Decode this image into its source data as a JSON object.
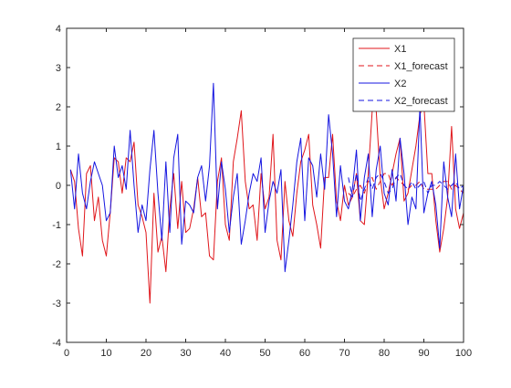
{
  "colors": {
    "x1": "#e0161b",
    "x2": "#1515e0",
    "axis": "#262626",
    "background": "#ffffff"
  },
  "chart_data": {
    "type": "line",
    "title": "",
    "xlabel": "",
    "ylabel": "",
    "xlim": [
      0,
      100
    ],
    "ylim": [
      -4,
      4
    ],
    "xticks": [
      0,
      10,
      20,
      30,
      40,
      50,
      60,
      70,
      80,
      90,
      100
    ],
    "yticks": [
      -4,
      -3,
      -2,
      -1,
      0,
      1,
      2,
      3,
      4
    ],
    "grid": false,
    "legend_position": "top-right",
    "legend": [
      {
        "label": "X1",
        "series": "X1",
        "style": "solid",
        "color": "#e0161b"
      },
      {
        "label": "X1_forecast",
        "series": "X1_forecast",
        "style": "dashed",
        "color": "#e0161b"
      },
      {
        "label": "X2",
        "series": "X2",
        "style": "solid",
        "color": "#1515e0"
      },
      {
        "label": "X2_forecast",
        "series": "X2_forecast",
        "style": "dashed",
        "color": "#1515e0"
      }
    ],
    "series": [
      {
        "name": "X1",
        "color": "#e0161b",
        "style": "solid",
        "x": [
          1,
          2,
          3,
          4,
          5,
          6,
          7,
          8,
          9,
          10,
          11,
          12,
          13,
          14,
          15,
          16,
          17,
          18,
          19,
          20,
          21,
          22,
          23,
          24,
          25,
          26,
          27,
          28,
          29,
          30,
          31,
          32,
          33,
          34,
          35,
          36,
          37,
          38,
          39,
          40,
          41,
          42,
          43,
          44,
          45,
          46,
          47,
          48,
          49,
          50,
          51,
          52,
          53,
          54,
          55,
          56,
          57,
          58,
          59,
          60,
          61,
          62,
          63,
          64,
          65,
          66,
          67,
          68,
          69,
          70,
          71,
          72,
          73,
          74,
          75,
          76,
          77,
          78,
          79,
          80,
          81,
          82,
          83,
          84,
          85,
          86,
          87,
          88,
          89,
          90,
          91,
          92,
          93,
          94,
          95,
          96,
          97,
          98,
          99,
          100
        ],
        "y": [
          0.4,
          0.1,
          -1.1,
          -1.8,
          0.3,
          0.5,
          -0.9,
          -0.3,
          -1.4,
          -1.8,
          -0.7,
          0.7,
          0.6,
          -0.2,
          0.7,
          0.6,
          1.1,
          -0.5,
          -0.8,
          -1.2,
          -3.0,
          -0.2,
          -1.7,
          -1.3,
          -2.2,
          -0.6,
          0.3,
          -1.1,
          0.1,
          -1.2,
          -1.1,
          -0.6,
          0.2,
          -0.8,
          -0.7,
          -1.8,
          -1.9,
          0.1,
          0.7,
          -1.0,
          -1.4,
          0.6,
          1.2,
          1.9,
          0.1,
          -0.6,
          -0.5,
          -1.4,
          0.3,
          -0.6,
          -0.3,
          1.3,
          -1.4,
          -1.9,
          0.1,
          -0.9,
          -1.3,
          -0.2,
          0.6,
          0.9,
          1.3,
          -0.5,
          -1.0,
          -1.6,
          0.2,
          0.2,
          1.3,
          -0.4,
          -0.9,
          0.0,
          -0.5,
          -0.3,
          0.3,
          -0.9,
          -1.0,
          0.3,
          1.9,
          1.9,
          0.2,
          -0.6,
          -0.2,
          0.3,
          0.8,
          1.2,
          -0.4,
          -0.2,
          0.4,
          1.0,
          1.8,
          2.1,
          0.3,
          0.3,
          -0.9,
          -1.7,
          -1.1,
          -0.3,
          1.5,
          -0.6,
          -1.1,
          -0.7
        ]
      },
      {
        "name": "X1_forecast",
        "color": "#e0161b",
        "style": "dashed",
        "x": [
          71,
          72,
          73,
          74,
          75,
          76,
          77,
          78,
          79,
          80,
          81,
          82,
          83,
          84,
          85,
          86,
          87,
          88,
          89,
          90,
          91,
          92,
          93,
          94,
          95,
          96,
          97,
          98,
          99,
          100
        ],
        "y": [
          -0.2,
          -0.3,
          -0.1,
          0.0,
          -0.2,
          0.1,
          0.2,
          -0.1,
          0.1,
          0.3,
          0.3,
          0.0,
          0.2,
          0.1,
          0.0,
          -0.1,
          0.0,
          0.0,
          0.1,
          -0.1,
          -0.1,
          -0.1,
          -0.1,
          0.0,
          0.1,
          0.1,
          -0.1,
          0.0,
          -0.1,
          -0.2
        ]
      },
      {
        "name": "X2",
        "color": "#1515e0",
        "style": "solid",
        "x": [
          1,
          2,
          3,
          4,
          5,
          6,
          7,
          8,
          9,
          10,
          11,
          12,
          13,
          14,
          15,
          16,
          17,
          18,
          19,
          20,
          21,
          22,
          23,
          24,
          25,
          26,
          27,
          28,
          29,
          30,
          31,
          32,
          33,
          34,
          35,
          36,
          37,
          38,
          39,
          40,
          41,
          42,
          43,
          44,
          45,
          46,
          47,
          48,
          49,
          50,
          51,
          52,
          53,
          54,
          55,
          56,
          57,
          58,
          59,
          60,
          61,
          62,
          63,
          64,
          65,
          66,
          67,
          68,
          69,
          70,
          71,
          72,
          73,
          74,
          75,
          76,
          77,
          78,
          79,
          80,
          81,
          82,
          83,
          84,
          85,
          86,
          87,
          88,
          89,
          90,
          91,
          92,
          93,
          94,
          95,
          96,
          97,
          98,
          99,
          100
        ],
        "y": [
          0.4,
          -0.6,
          0.8,
          -0.2,
          -0.6,
          0.1,
          0.6,
          0.3,
          0.0,
          -0.9,
          -0.7,
          1.0,
          0.2,
          0.5,
          -0.1,
          1.4,
          0.0,
          -1.2,
          -0.5,
          -0.9,
          0.4,
          1.4,
          -0.2,
          -1.4,
          0.6,
          -1.2,
          0.7,
          1.3,
          -1.5,
          -0.4,
          -0.5,
          -0.7,
          0.2,
          0.5,
          -0.4,
          0.5,
          2.6,
          -0.6,
          0.6,
          -0.1,
          -1.2,
          -0.3,
          0.3,
          -1.5,
          -0.9,
          -0.2,
          0.3,
          0.1,
          0.7,
          -1.2,
          -0.4,
          0.1,
          -0.2,
          0.4,
          -2.2,
          -1.4,
          -0.5,
          0.6,
          1.2,
          -0.9,
          0.7,
          0.5,
          -0.3,
          0.8,
          -0.1,
          1.8,
          0.8,
          -0.8,
          0.5,
          -0.4,
          -0.6,
          -0.1,
          0.9,
          -0.9,
          0.2,
          0.8,
          -0.8,
          0.4,
          1.0,
          -0.2,
          -0.5,
          0.4,
          -0.4,
          1.2,
          0.3,
          -1.0,
          -0.3,
          -0.6,
          2.0,
          -0.7,
          -0.2,
          0.1,
          -0.5,
          -1.6,
          0.6,
          -0.3,
          -0.8,
          0.8,
          -0.6,
          0.0
        ]
      },
      {
        "name": "X2_forecast",
        "color": "#1515e0",
        "style": "dashed",
        "x": [
          71,
          72,
          73,
          74,
          75,
          76,
          77,
          78,
          79,
          80,
          81,
          82,
          83,
          84,
          85,
          86,
          87,
          88,
          89,
          90,
          91,
          92,
          93,
          94,
          95,
          96,
          97,
          98,
          99,
          100
        ],
        "y": [
          0.2,
          -0.3,
          0.3,
          -0.4,
          -0.1,
          0.2,
          -0.1,
          0.2,
          0.3,
          0.1,
          -0.2,
          -0.1,
          0.2,
          0.3,
          0.0,
          -0.1,
          0.1,
          -0.1,
          0.0,
          0.1,
          -0.2,
          0.0,
          0.0,
          0.1,
          0.0,
          -0.1,
          0.0,
          0.1,
          -0.1,
          0.0
        ]
      }
    ]
  }
}
